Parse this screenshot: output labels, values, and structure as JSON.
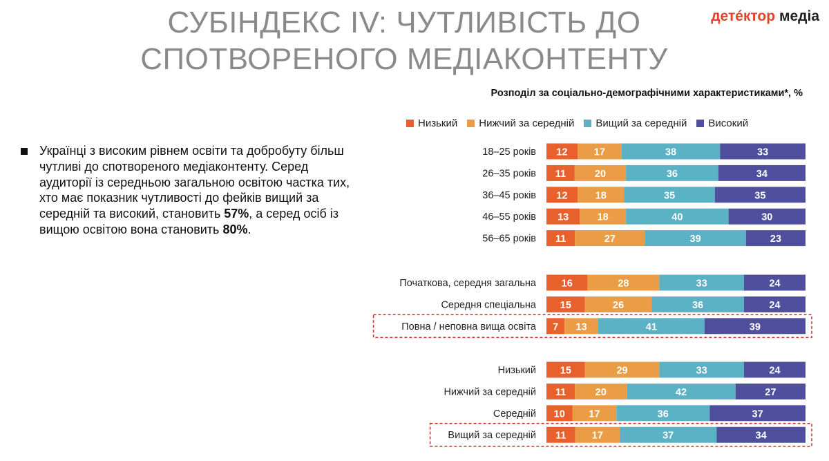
{
  "header": {
    "title_line1": "СУБІНДЕКС IV: ЧУТЛИВІСТЬ ДО",
    "title_line2": "СПОТВОРЕНОГО МЕДІАКОНТЕНТУ",
    "logo_word1": "детéктор",
    "logo_word2": "медіа"
  },
  "body_text": {
    "part1": "Українці з високим рівнем освіти та добробуту більш чутливі до спотвореного медіаконтенту. Серед аудиторії із середньою загальною освітою частка тих, хто має показник чутливості до фейків вищий за середній та високий, становить ",
    "value1": "57%",
    "part2": ", а серед осіб із вищою освітою вона становить ",
    "value2": "80%",
    "part3": "."
  },
  "colors": {
    "low": "#e8612c",
    "below_avg": "#eb9d45",
    "above_avg": "#5bb2c5",
    "high": "#4f4f9d",
    "highlight": "#c0392b"
  },
  "chart_data": {
    "type": "bar",
    "orientation": "horizontal",
    "stacked": true,
    "normalized": true,
    "title": "Розподіл за соціально-демографічними характеристиками*, %",
    "series_names": [
      "Низький",
      "Нижчий за середній",
      "Вищий за середній",
      "Високий"
    ],
    "groups": [
      {
        "rows": [
          {
            "label": "18–25 років",
            "values": [
              12,
              17,
              38,
              33
            ],
            "highlight": false
          },
          {
            "label": "26–35 років",
            "values": [
              11,
              20,
              36,
              34
            ],
            "highlight": false
          },
          {
            "label": "36–45 років",
            "values": [
              12,
              18,
              35,
              35
            ],
            "highlight": false
          },
          {
            "label": "46–55 років",
            "values": [
              13,
              18,
              40,
              30
            ],
            "highlight": false
          },
          {
            "label": "56–65 років",
            "values": [
              11,
              27,
              39,
              23
            ],
            "highlight": false
          }
        ]
      },
      {
        "rows": [
          {
            "label": "Початкова, середня загальна",
            "values": [
              16,
              28,
              33,
              24
            ],
            "highlight": false
          },
          {
            "label": "Середня спеціальна",
            "values": [
              15,
              26,
              36,
              24
            ],
            "highlight": false
          },
          {
            "label": "Повна / неповна вища освіта",
            "values": [
              7,
              13,
              41,
              39
            ],
            "highlight": true
          }
        ]
      },
      {
        "rows": [
          {
            "label": "Низький",
            "values": [
              15,
              29,
              33,
              24
            ],
            "highlight": false
          },
          {
            "label": "Нижчий за середній",
            "values": [
              11,
              20,
              42,
              27
            ],
            "highlight": false
          },
          {
            "label": "Середній",
            "values": [
              10,
              17,
              36,
              37
            ],
            "highlight": false
          },
          {
            "label": "Вищий за середній",
            "values": [
              11,
              17,
              37,
              34
            ],
            "highlight": true
          }
        ]
      }
    ]
  }
}
